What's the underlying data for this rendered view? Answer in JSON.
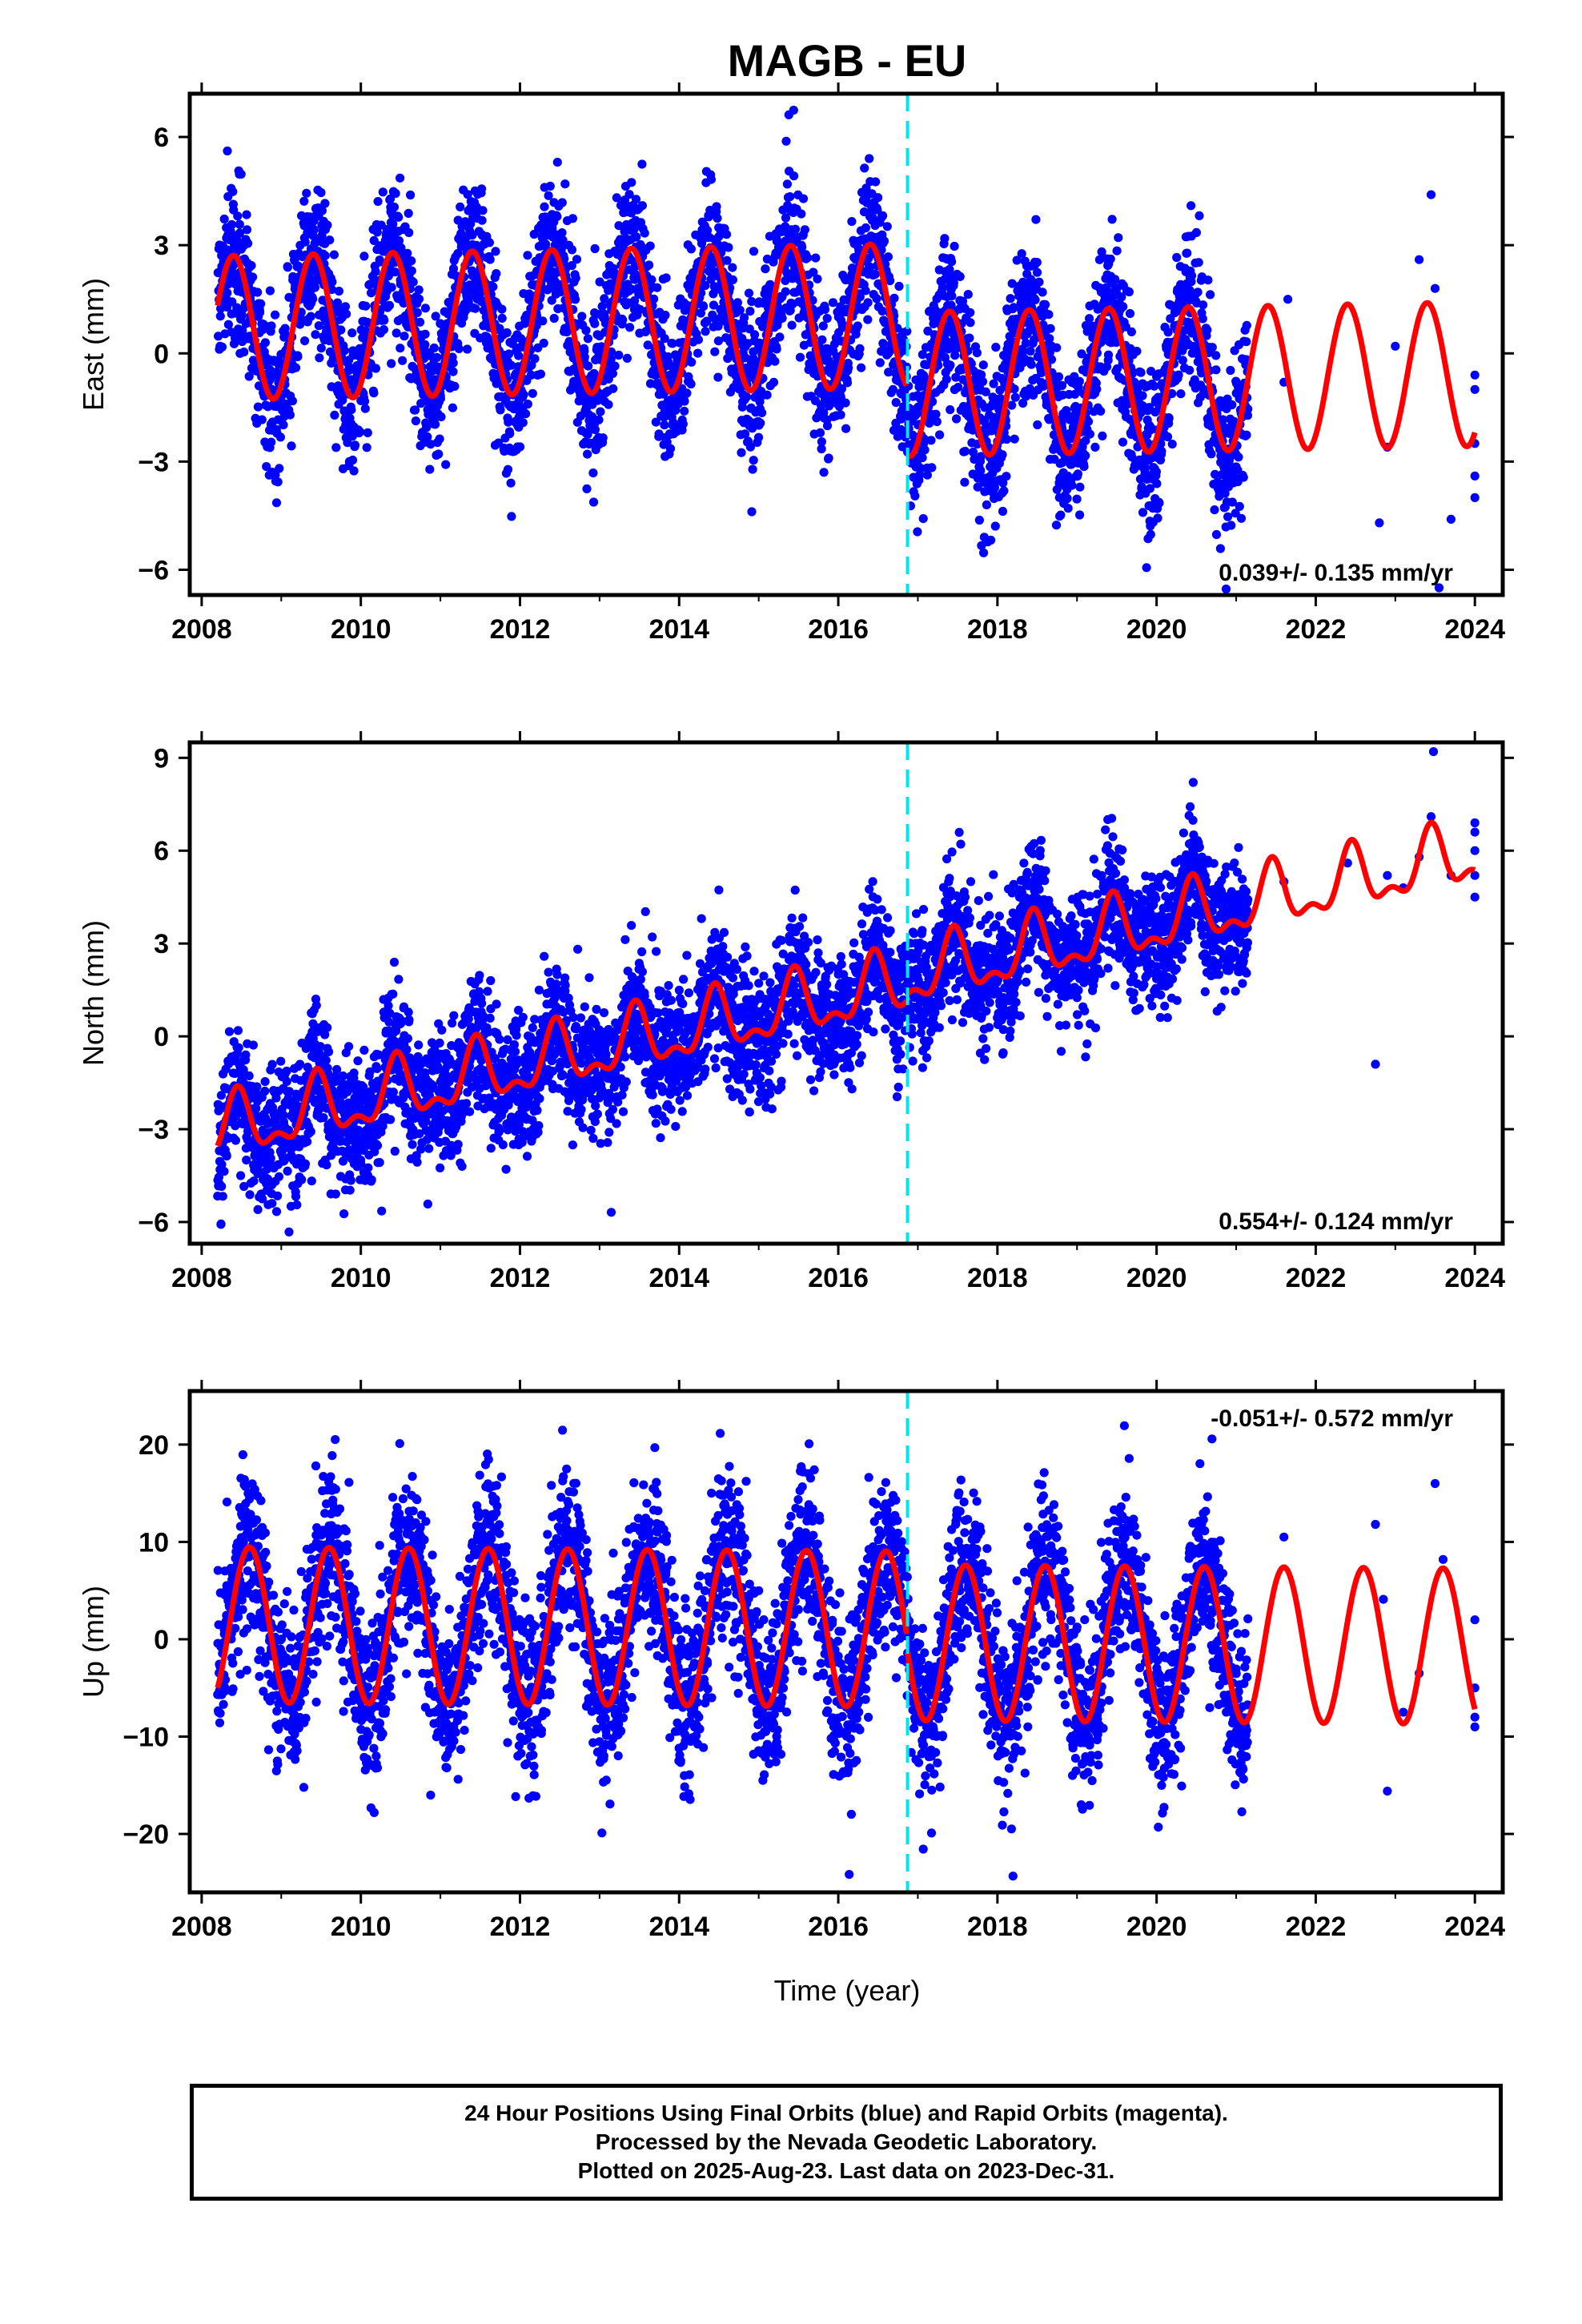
{
  "title": "MAGB - EU",
  "xlabel": "Time (year)",
  "colors": {
    "data": "#0000ff",
    "model": "#ff0000",
    "event_line": "#00e5ee",
    "frame": "#000000"
  },
  "footer": {
    "line1": "24 Hour Positions Using Final Orbits (blue) and Rapid Orbits (magenta).",
    "line2": "Processed by the Nevada Geodetic Laboratory.",
    "line3": "Plotted on 2025-Aug-23. Last data on 2023-Dec-31."
  },
  "chart_data": [
    {
      "type": "scatter",
      "component": "East",
      "ylabel": "East (mm)",
      "rate_label": "0.039+/- 0.135 mm/yr",
      "rate_position": "bottom-right",
      "xlim": [
        2007.85,
        2024.35
      ],
      "ylim": [
        -6.7,
        7.2
      ],
      "xticks": [
        2008,
        2010,
        2012,
        2014,
        2016,
        2018,
        2020,
        2022,
        2024
      ],
      "yticks": [
        -6,
        -3,
        0,
        3,
        6
      ],
      "event_line_x": 2016.87,
      "data_span": [
        2008.2,
        2021.15
      ],
      "sparse_points": [
        [
          2021.6,
          -0.8
        ],
        [
          2021.65,
          1.5
        ],
        [
          2022.8,
          -4.7
        ],
        [
          2022.9,
          -2.6
        ],
        [
          2023.0,
          0.2
        ],
        [
          2023.3,
          2.6
        ],
        [
          2023.45,
          4.4
        ],
        [
          2023.5,
          1.8
        ],
        [
          2023.55,
          -6.5
        ],
        [
          2023.7,
          -4.6
        ],
        [
          2024.0,
          -3.4
        ],
        [
          2024.0,
          -0.6
        ],
        [
          2024.0,
          -2.5
        ],
        [
          2024.0,
          -4.0
        ],
        [
          2024.0,
          -1.0
        ]
      ],
      "model": {
        "offset_before": 0.7,
        "offset_after": -1.2,
        "trend": 0.039,
        "annual_amp": 2.0,
        "annual_phase_peak": 0.4,
        "semiannual_amp": 0.0,
        "semiannual_phase_peak": 0.0,
        "noise_sd": 1.05
      },
      "series_names": [
        "24 Hour Positions (blue)",
        "Model fit (red)"
      ]
    },
    {
      "type": "scatter",
      "component": "North",
      "ylabel": "North (mm)",
      "rate_label": "0.554+/- 0.124 mm/yr",
      "rate_position": "bottom-right",
      "xlim": [
        2007.85,
        2024.35
      ],
      "ylim": [
        -6.7,
        9.5
      ],
      "xticks": [
        2008,
        2010,
        2012,
        2014,
        2016,
        2018,
        2020,
        2022,
        2024
      ],
      "yticks": [
        -6,
        -3,
        0,
        3,
        6,
        9
      ],
      "event_line_x": 2016.87,
      "data_span": [
        2008.2,
        2021.15
      ],
      "sparse_points": [
        [
          2021.6,
          5.0
        ],
        [
          2022.4,
          5.6
        ],
        [
          2022.75,
          -0.9
        ],
        [
          2022.9,
          5.2
        ],
        [
          2023.1,
          4.8
        ],
        [
          2023.3,
          5.8
        ],
        [
          2023.45,
          7.1
        ],
        [
          2023.48,
          9.2
        ],
        [
          2023.7,
          5.2
        ],
        [
          2024.0,
          6.6
        ],
        [
          2024.0,
          6.0
        ],
        [
          2024.0,
          4.5
        ],
        [
          2024.0,
          5.2
        ],
        [
          2024.0,
          6.9
        ]
      ],
      "model": {
        "offset_before": -3.2,
        "offset_after": -3.0,
        "trend": 0.554,
        "annual_amp": 0.9,
        "annual_phase_peak": 0.45,
        "semiannual_amp": 0.45,
        "semiannual_phase_peak": 0.45,
        "noise_sd": 1.05
      },
      "series_names": [
        "24 Hour Positions (blue)",
        "Model fit (red)"
      ]
    },
    {
      "type": "scatter",
      "component": "Up",
      "ylabel": "Up (mm)",
      "rate_label": "-0.051+/- 0.572 mm/yr",
      "rate_position": "top-right",
      "xlim": [
        2007.85,
        2024.35
      ],
      "ylim": [
        -26.0,
        25.5
      ],
      "xticks": [
        2008,
        2010,
        2012,
        2014,
        2016,
        2018,
        2020,
        2022,
        2024
      ],
      "yticks": [
        -20,
        -10,
        0,
        10,
        20
      ],
      "event_line_x": 2016.87,
      "data_span": [
        2008.2,
        2021.15
      ],
      "sparse_points": [
        [
          2021.6,
          10.5
        ],
        [
          2022.75,
          11.8
        ],
        [
          2022.85,
          4.1
        ],
        [
          2022.9,
          -15.6
        ],
        [
          2023.1,
          -7.5
        ],
        [
          2023.3,
          -3.5
        ],
        [
          2023.5,
          16.0
        ],
        [
          2023.6,
          8.2
        ],
        [
          2024.0,
          2.0
        ],
        [
          2024.0,
          -9.0
        ],
        [
          2024.0,
          -5.0
        ],
        [
          2024.0,
          -8.0
        ]
      ],
      "model": {
        "offset_before": 1.5,
        "offset_after": 0.1,
        "trend": -0.051,
        "annual_amp": 8.0,
        "annual_phase_peak": 0.6,
        "semiannual_amp": 0.0,
        "semiannual_phase_peak": 0.0,
        "noise_sd": 4.3
      },
      "series_names": [
        "24 Hour Positions (blue)",
        "Model fit (red)"
      ]
    }
  ]
}
